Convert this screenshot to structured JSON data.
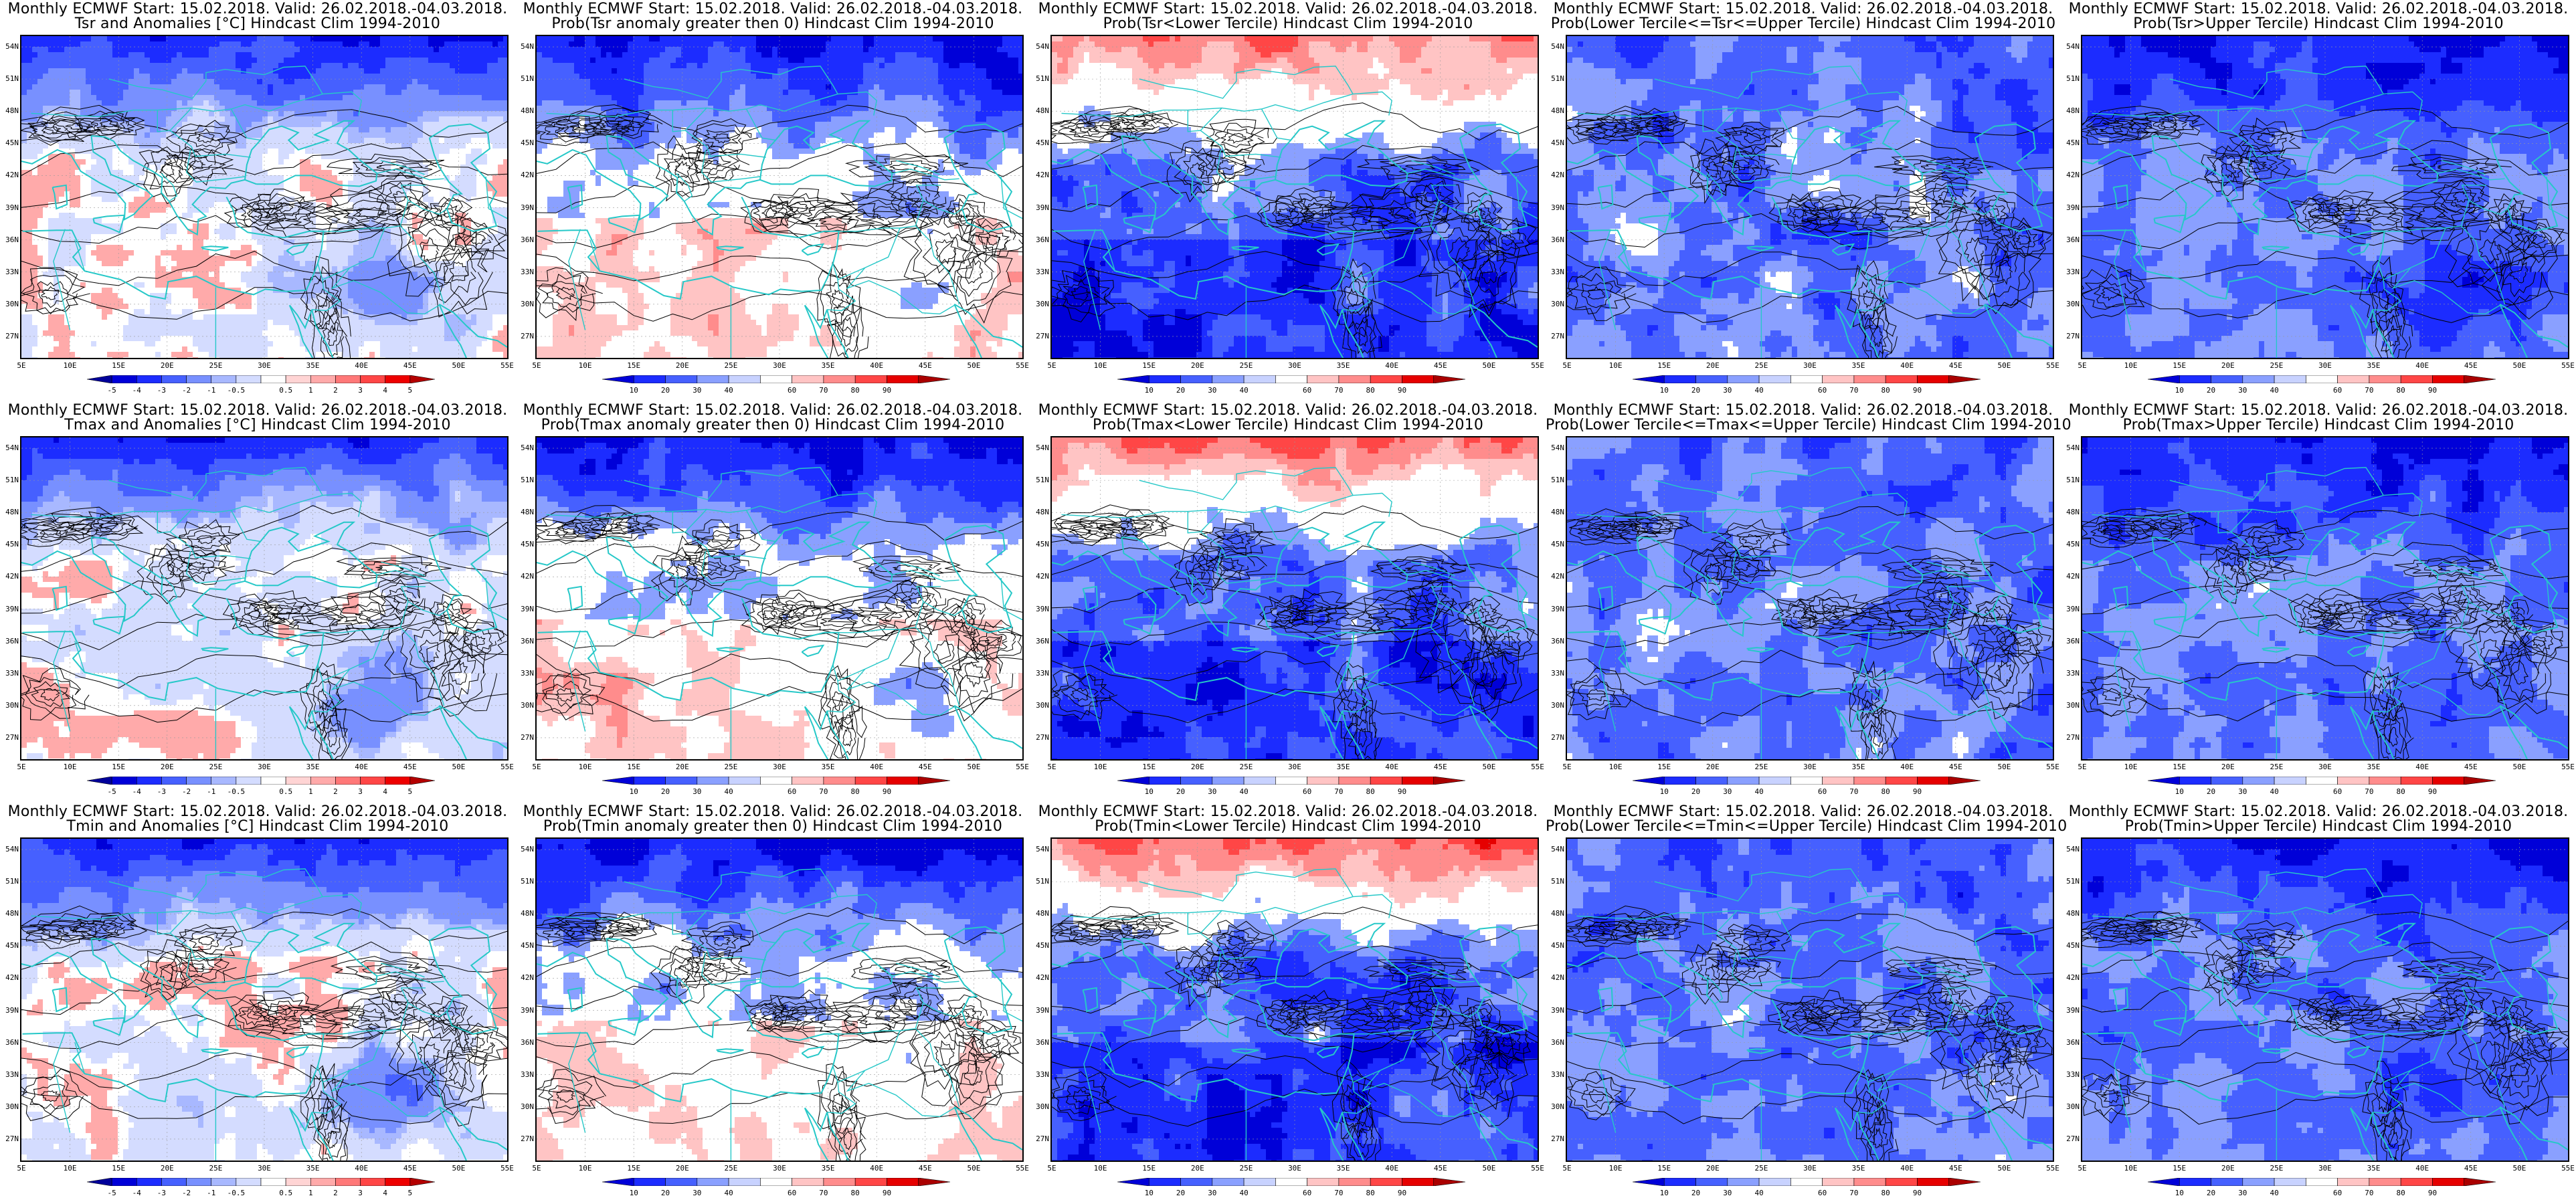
{
  "rows": [
    {
      "variable": "Tsr",
      "panels": [
        {
          "title_line1": "Monthly ECMWF Start: 15.02.2018. Valid: 26.02.2018.-04.03.2018.",
          "title_line2": "Tsr and Anomalies [°C] Hindcast Clim 1994-2010",
          "scale": "anomaly",
          "pattern": "anom"
        },
        {
          "title_line1": "Monthly ECMWF Start: 15.02.2018. Valid: 26.02.2018.-04.03.2018.",
          "title_line2": "Prob(Tsr anomaly greater then 0) Hindcast Clim 1994-2010",
          "scale": "prob",
          "pattern": "above0"
        },
        {
          "title_line1": "Monthly ECMWF Start: 15.02.2018. Valid: 26.02.2018.-04.03.2018.",
          "title_line2": "Prob(Tsr<Lower Tercile) Hindcast Clim 1994-2010",
          "scale": "prob",
          "pattern": "lower"
        },
        {
          "title_line1": "Monthly ECMWF Start: 15.02.2018. Valid: 26.02.2018.-04.03.2018.",
          "title_line2": "Prob(Lower Tercile<=Tsr<=Upper Tercile) Hindcast Clim 1994-2010",
          "scale": "prob",
          "pattern": "middle"
        },
        {
          "title_line1": "Monthly ECMWF Start: 15.02.2018. Valid: 26.02.2018.-04.03.2018.",
          "title_line2": "Prob(Tsr>Upper Tercile) Hindcast Clim 1994-2010",
          "scale": "prob",
          "pattern": "upper"
        }
      ]
    },
    {
      "variable": "Tmax",
      "panels": [
        {
          "title_line1": "Monthly ECMWF Start: 15.02.2018. Valid: 26.02.2018.-04.03.2018.",
          "title_line2": "Tmax and Anomalies [°C] Hindcast Clim 1994-2010",
          "scale": "anomaly",
          "pattern": "anom"
        },
        {
          "title_line1": "Monthly ECMWF Start: 15.02.2018. Valid: 26.02.2018.-04.03.2018.",
          "title_line2": "Prob(Tmax anomaly greater then 0) Hindcast Clim 1994-2010",
          "scale": "prob",
          "pattern": "above0"
        },
        {
          "title_line1": "Monthly ECMWF Start: 15.02.2018. Valid: 26.02.2018.-04.03.2018.",
          "title_line2": "Prob(Tmax<Lower Tercile) Hindcast Clim 1994-2010",
          "scale": "prob",
          "pattern": "lower"
        },
        {
          "title_line1": "Monthly ECMWF Start: 15.02.2018. Valid: 26.02.2018.-04.03.2018.",
          "title_line2": "Prob(Lower Tercile<=Tmax<=Upper Tercile) Hindcast Clim 1994-2010",
          "scale": "prob",
          "pattern": "middle"
        },
        {
          "title_line1": "Monthly ECMWF Start: 15.02.2018. Valid: 26.02.2018.-04.03.2018.",
          "title_line2": "Prob(Tmax>Upper Tercile) Hindcast Clim 1994-2010",
          "scale": "prob",
          "pattern": "upper"
        }
      ]
    },
    {
      "variable": "Tmin",
      "panels": [
        {
          "title_line1": "Monthly ECMWF Start: 15.02.2018. Valid: 26.02.2018.-04.03.2018.",
          "title_line2": "Tmin and Anomalies [°C] Hindcast Clim 1994-2010",
          "scale": "anomaly",
          "pattern": "anom"
        },
        {
          "title_line1": "Monthly ECMWF Start: 15.02.2018. Valid: 26.02.2018.-04.03.2018.",
          "title_line2": "Prob(Tmin anomaly greater then 0) Hindcast Clim 1994-2010",
          "scale": "prob",
          "pattern": "above0"
        },
        {
          "title_line1": "Monthly ECMWF Start: 15.02.2018. Valid: 26.02.2018.-04.03.2018.",
          "title_line2": "Prob(Tmin<Lower Tercile) Hindcast Clim 1994-2010",
          "scale": "prob",
          "pattern": "lower"
        },
        {
          "title_line1": "Monthly ECMWF Start: 15.02.2018. Valid: 26.02.2018.-04.03.2018.",
          "title_line2": "Prob(Lower Tercile<=Tmin<=Upper Tercile) Hindcast Clim 1994-2010",
          "scale": "prob",
          "pattern": "middle"
        },
        {
          "title_line1": "Monthly ECMWF Start: 15.02.2018. Valid: 26.02.2018.-04.03.2018.",
          "title_line2": "Prob(Tmin>Upper Tercile) Hindcast Clim 1994-2010",
          "scale": "prob",
          "pattern": "upper"
        }
      ]
    }
  ],
  "axes": {
    "lat_labels": [
      "54N",
      "51N",
      "48N",
      "45N",
      "42N",
      "39N",
      "36N",
      "33N",
      "30N",
      "27N"
    ],
    "lon_labels": [
      "5E",
      "10E",
      "15E",
      "20E",
      "25E",
      "30E",
      "35E",
      "40E",
      "45E",
      "50E",
      "55E"
    ]
  },
  "scales": {
    "anomaly": {
      "labels": [
        "-5",
        "-4",
        "-3",
        "-2",
        "-1",
        "-0.5",
        "0.5",
        "1",
        "2",
        "3",
        "4",
        "5"
      ],
      "colors": [
        "#00009a",
        "#0000d8",
        "#1c2cff",
        "#4660ff",
        "#7890ff",
        "#a8b8ff",
        "#d4dcff",
        "#ffffff",
        "#ffd4d4",
        "#ffaaaa",
        "#ff7878",
        "#ff4646",
        "#ee0000",
        "#b40000"
      ]
    },
    "prob": {
      "labels": [
        "10",
        "20",
        "30",
        "40",
        "60",
        "70",
        "80",
        "90"
      ],
      "colors": [
        "#0000d8",
        "#1c2cff",
        "#4660ff",
        "#8aa0ff",
        "#c8d2ff",
        "#ffffff",
        "#ffc4c4",
        "#ff8c8c",
        "#ff4646",
        "#e60000",
        "#aa0000"
      ]
    }
  },
  "map_colors": {
    "coast": "#26c8c8",
    "contour": "#000000",
    "grid": "#9a9a9a"
  }
}
